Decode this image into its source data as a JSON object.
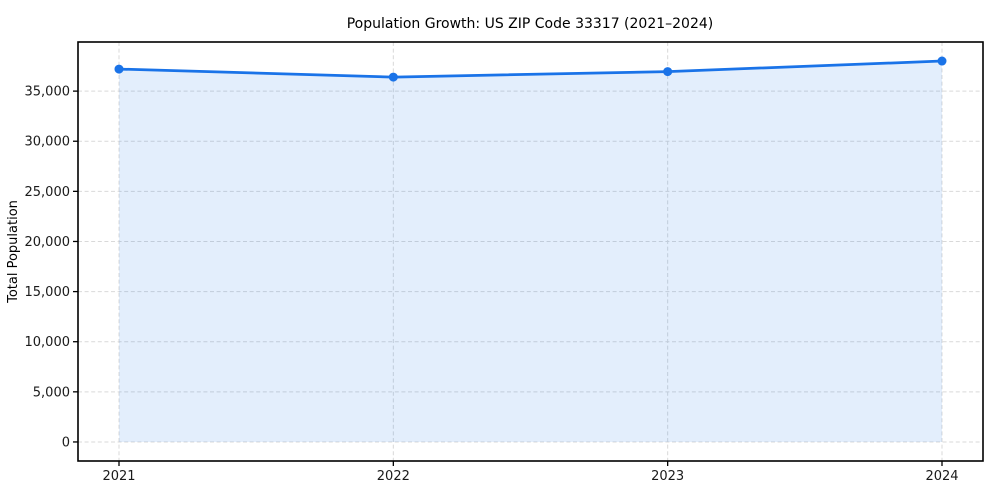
{
  "figure": {
    "background": "#ffffff"
  },
  "chart_data": {
    "type": "line",
    "title": "Population Growth: US ZIP Code 33317 (2021–2024)",
    "xlabel": "",
    "ylabel": "Total Population",
    "categories": [
      "2021",
      "2022",
      "2023",
      "2024"
    ],
    "series": [
      {
        "name": "Total Population",
        "values": [
          37200,
          36400,
          36950,
          38000
        ],
        "line_color": "#1a73e8",
        "fill_color": "rgba(26,115,232,0.12)",
        "marker": "circle",
        "fill_to": 0
      }
    ],
    "yticks": [
      0,
      5000,
      10000,
      15000,
      20000,
      25000,
      30000,
      35000
    ],
    "ytick_labels": [
      "0",
      "5,000",
      "10,000",
      "15,000",
      "20,000",
      "25,000",
      "30,000",
      "35,000"
    ],
    "ylim": [
      -1900,
      39900
    ],
    "grid": true,
    "grid_style": "dashed",
    "legend": "none"
  },
  "style": {
    "grid_color": "#d9d9d9",
    "spine_color": "#000000",
    "tick_color": "#000000",
    "text_color": "#1a1a1a"
  }
}
